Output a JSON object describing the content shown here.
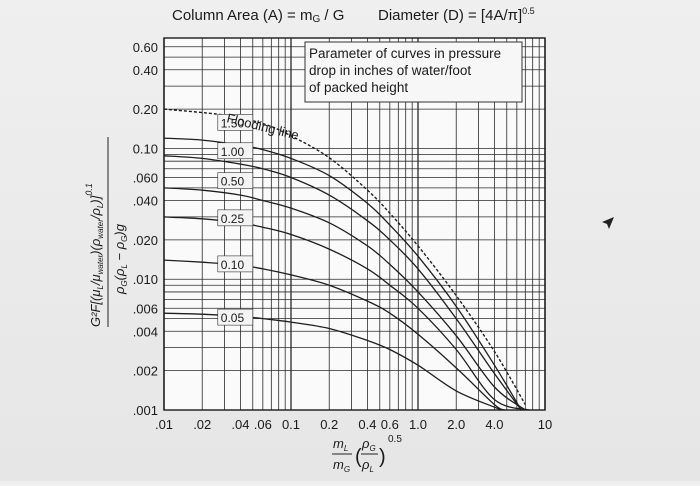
{
  "header": {
    "left": "Column Area (A) = m",
    "left_sub": "G",
    "left_tail": " / G",
    "right": "Diameter (D) = [4A/π]",
    "right_sup": "0.5"
  },
  "chart_data": {
    "type": "line",
    "xscale": "log",
    "yscale": "log",
    "xlim": [
      0.01,
      10
    ],
    "ylim": [
      0.001,
      0.7
    ],
    "x_ticks": [
      {
        "v": 0.01,
        "label": ".01"
      },
      {
        "v": 0.02,
        "label": ".02"
      },
      {
        "v": 0.04,
        "label": ".04"
      },
      {
        "v": 0.06,
        "label": ".06"
      },
      {
        "v": 0.1,
        "label": "0.1"
      },
      {
        "v": 0.2,
        "label": "0.2"
      },
      {
        "v": 0.4,
        "label": "0.4"
      },
      {
        "v": 0.6,
        "label": "0.6"
      },
      {
        "v": 1.0,
        "label": "1.0"
      },
      {
        "v": 2.0,
        "label": "2.0"
      },
      {
        "v": 4.0,
        "label": "4.0"
      },
      {
        "v": 10,
        "label": "10"
      }
    ],
    "y_ticks": [
      {
        "v": 0.6,
        "label": "0.60"
      },
      {
        "v": 0.4,
        "label": "0.40"
      },
      {
        "v": 0.2,
        "label": "0.20"
      },
      {
        "v": 0.1,
        "label": "0.10"
      },
      {
        "v": 0.06,
        "label": ".060"
      },
      {
        "v": 0.04,
        "label": ".040"
      },
      {
        "v": 0.02,
        "label": ".020"
      },
      {
        "v": 0.01,
        "label": ".010"
      },
      {
        "v": 0.006,
        "label": ".006"
      },
      {
        "v": 0.004,
        "label": ".004"
      },
      {
        "v": 0.002,
        "label": ".002"
      },
      {
        "v": 0.001,
        "label": ".001"
      }
    ],
    "x_grid": [
      0.01,
      0.02,
      0.03,
      0.04,
      0.05,
      0.06,
      0.07,
      0.08,
      0.09,
      0.1,
      0.2,
      0.3,
      0.4,
      0.5,
      0.6,
      0.7,
      0.8,
      0.9,
      1,
      2,
      3,
      4,
      5,
      6,
      7,
      8,
      9,
      10
    ],
    "y_grid": [
      0.001,
      0.002,
      0.003,
      0.004,
      0.005,
      0.006,
      0.007,
      0.008,
      0.009,
      0.01,
      0.02,
      0.03,
      0.04,
      0.05,
      0.06,
      0.07,
      0.08,
      0.09,
      0.1,
      0.2,
      0.3,
      0.4,
      0.5,
      0.6,
      0.7
    ],
    "series": [
      {
        "name": "Flooding line",
        "dashed": true,
        "points": [
          [
            0.01,
            0.2
          ],
          [
            0.03,
            0.18
          ],
          [
            0.06,
            0.155
          ],
          [
            0.1,
            0.125
          ],
          [
            0.2,
            0.085
          ],
          [
            0.4,
            0.048
          ],
          [
            0.6,
            0.032
          ],
          [
            1.0,
            0.018
          ],
          [
            2.0,
            0.0075
          ],
          [
            4.0,
            0.0028
          ],
          [
            7.0,
            0.0011
          ]
        ]
      },
      {
        "name": "1.50",
        "points": [
          [
            0.01,
            0.12
          ],
          [
            0.02,
            0.116
          ],
          [
            0.04,
            0.106
          ],
          [
            0.06,
            0.098
          ],
          [
            0.1,
            0.084
          ],
          [
            0.2,
            0.062
          ],
          [
            0.4,
            0.038
          ],
          [
            0.6,
            0.026
          ],
          [
            1.0,
            0.015
          ],
          [
            2.0,
            0.0062
          ],
          [
            4.0,
            0.0022
          ],
          [
            6.5,
            0.001
          ]
        ]
      },
      {
        "name": "1.00",
        "points": [
          [
            0.01,
            0.088
          ],
          [
            0.02,
            0.084
          ],
          [
            0.04,
            0.076
          ],
          [
            0.06,
            0.07
          ],
          [
            0.1,
            0.06
          ],
          [
            0.2,
            0.044
          ],
          [
            0.4,
            0.028
          ],
          [
            0.6,
            0.02
          ],
          [
            1.0,
            0.012
          ],
          [
            2.0,
            0.005
          ],
          [
            4.0,
            0.0019
          ],
          [
            6.5,
            0.001
          ]
        ]
      },
      {
        "name": "0.50",
        "points": [
          [
            0.01,
            0.05
          ],
          [
            0.02,
            0.048
          ],
          [
            0.04,
            0.044
          ],
          [
            0.06,
            0.04
          ],
          [
            0.1,
            0.035
          ],
          [
            0.2,
            0.027
          ],
          [
            0.4,
            0.018
          ],
          [
            0.6,
            0.013
          ],
          [
            1.0,
            0.008
          ],
          [
            2.0,
            0.0037
          ],
          [
            4.0,
            0.0015
          ],
          [
            7.0,
            0.001
          ]
        ]
      },
      {
        "name": "0.25",
        "points": [
          [
            0.01,
            0.03
          ],
          [
            0.02,
            0.029
          ],
          [
            0.04,
            0.027
          ],
          [
            0.06,
            0.025
          ],
          [
            0.1,
            0.022
          ],
          [
            0.2,
            0.017
          ],
          [
            0.4,
            0.012
          ],
          [
            0.6,
            0.009
          ],
          [
            1.0,
            0.006
          ],
          [
            2.0,
            0.0029
          ],
          [
            4.0,
            0.0012
          ],
          [
            7.5,
            0.001
          ]
        ]
      },
      {
        "name": "0.10",
        "points": [
          [
            0.01,
            0.014
          ],
          [
            0.02,
            0.0135
          ],
          [
            0.04,
            0.0128
          ],
          [
            0.06,
            0.012
          ],
          [
            0.1,
            0.0108
          ],
          [
            0.2,
            0.009
          ],
          [
            0.4,
            0.0068
          ],
          [
            0.6,
            0.0055
          ],
          [
            1.0,
            0.0038
          ],
          [
            2.0,
            0.0021
          ],
          [
            4.0,
            0.0011
          ],
          [
            4.8,
            0.001
          ]
        ]
      },
      {
        "name": "0.05",
        "points": [
          [
            0.01,
            0.0055
          ],
          [
            0.02,
            0.0054
          ],
          [
            0.04,
            0.0052
          ],
          [
            0.06,
            0.005
          ],
          [
            0.1,
            0.0047
          ],
          [
            0.2,
            0.0042
          ],
          [
            0.4,
            0.0034
          ],
          [
            0.6,
            0.0029
          ],
          [
            1.0,
            0.0022
          ],
          [
            2.0,
            0.0014
          ],
          [
            4.0,
            0.00105
          ],
          [
            4.6,
            0.001
          ]
        ]
      }
    ],
    "curve_labels": [
      {
        "text": "1.50",
        "x": 0.027,
        "y": 0.145
      },
      {
        "text": "1.00",
        "x": 0.027,
        "y": 0.088
      },
      {
        "text": "0.50",
        "x": 0.027,
        "y": 0.052
      },
      {
        "text": "0.25",
        "x": 0.027,
        "y": 0.027
      },
      {
        "text": "0.10",
        "x": 0.027,
        "y": 0.012
      },
      {
        "text": "0.05",
        "x": 0.027,
        "y": 0.0047
      }
    ],
    "flooding_label": "Flooding line",
    "legend_box": [
      "Parameter of curves in pressure",
      "drop in inches of water/foot",
      "of packed height"
    ],
    "xlabel": {
      "num": "m",
      "num_sub": "L",
      "den": "m",
      "den_sub": "G",
      "frac_num": "ρ",
      "frac_num_sub": "G",
      "frac_den": "ρ",
      "frac_den_sub": "L",
      "exp": "0.5"
    },
    "ylabel": {
      "top": "G²F[(μ",
      "top_sub": "L",
      "top_mid": "/μ",
      "top_mid_sub": "water",
      "top_end": ")(ρ",
      "top_end_sub": "water",
      "top_end2": "/ρ",
      "top_end2_sub": "L",
      "top_close": ")]",
      "top_exp": "0.1",
      "bottom": "ρ",
      "bottom_sub": "G",
      "bottom_mid": "(ρ",
      "bottom_mid_sub": "L",
      "bottom_minus": " − ρ",
      "bottom_minus_sub": "G",
      "bottom_end": ")g"
    }
  }
}
